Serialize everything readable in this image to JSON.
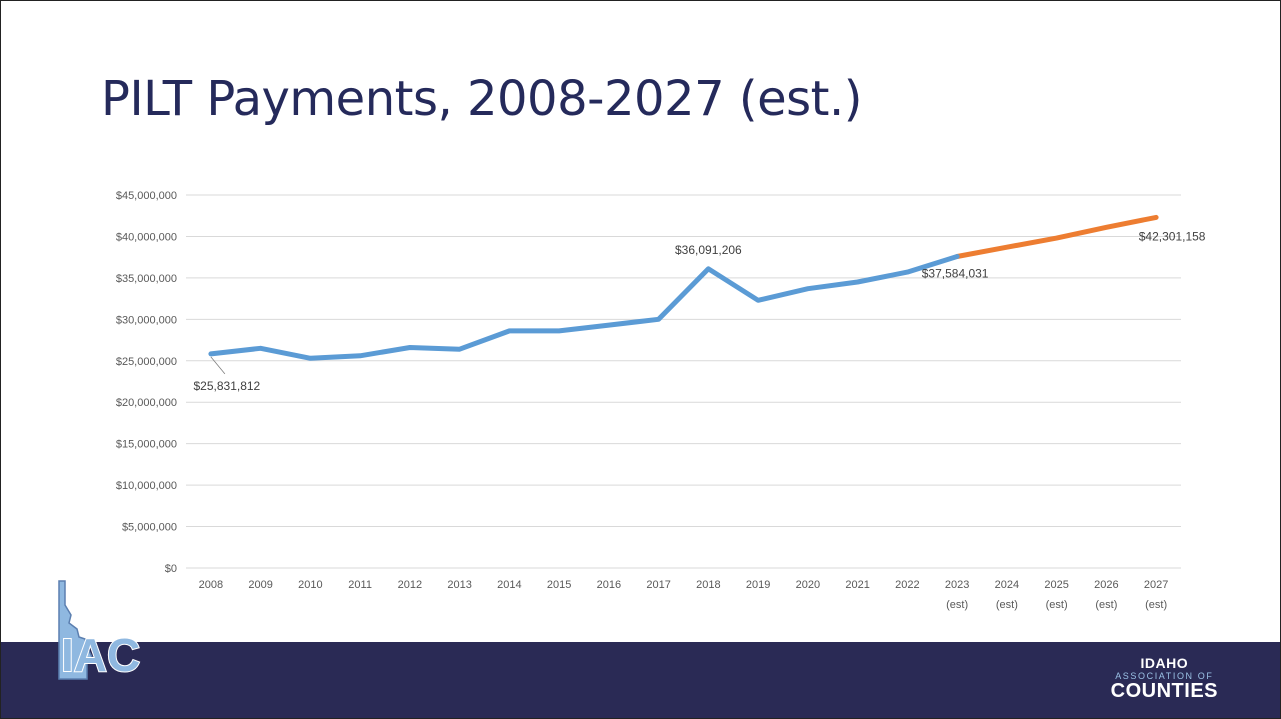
{
  "slide": {
    "title": "PILT Payments, 2008-2027 (est.)"
  },
  "logos": {
    "left_text": "IAC",
    "right_line1": "IDAHO",
    "right_line2": "ASSOCIATION OF",
    "right_line3": "COUNTIES"
  },
  "colors": {
    "actual_series": "#5b9bd5",
    "estimate_series": "#ed7d31",
    "title": "#252a5b",
    "footer": "#2a2a55"
  },
  "chart_data": {
    "type": "line",
    "title": "",
    "xlabel": "",
    "ylabel": "",
    "ylim": [
      0,
      45000000
    ],
    "y_ticks": [
      "$0",
      "$5,000,000",
      "$10,000,000",
      "$15,000,000",
      "$20,000,000",
      "$25,000,000",
      "$30,000,000",
      "$35,000,000",
      "$40,000,000",
      "$45,000,000"
    ],
    "categories": [
      {
        "year": "2008",
        "sub": ""
      },
      {
        "year": "2009",
        "sub": ""
      },
      {
        "year": "2010",
        "sub": ""
      },
      {
        "year": "2011",
        "sub": ""
      },
      {
        "year": "2012",
        "sub": ""
      },
      {
        "year": "2013",
        "sub": ""
      },
      {
        "year": "2014",
        "sub": ""
      },
      {
        "year": "2015",
        "sub": ""
      },
      {
        "year": "2016",
        "sub": ""
      },
      {
        "year": "2017",
        "sub": ""
      },
      {
        "year": "2018",
        "sub": ""
      },
      {
        "year": "2019",
        "sub": ""
      },
      {
        "year": "2020",
        "sub": ""
      },
      {
        "year": "2021",
        "sub": ""
      },
      {
        "year": "2022",
        "sub": ""
      },
      {
        "year": "2023",
        "sub": "(est)"
      },
      {
        "year": "2024",
        "sub": "(est)"
      },
      {
        "year": "2025",
        "sub": "(est)"
      },
      {
        "year": "2026",
        "sub": "(est)"
      },
      {
        "year": "2027",
        "sub": "(est)"
      }
    ],
    "values": [
      25831812,
      26500000,
      25300000,
      25600000,
      26600000,
      26400000,
      28600000,
      28600000,
      29300000,
      30000000,
      36091206,
      32300000,
      33700000,
      34500000,
      35700000,
      37584031,
      38700000,
      39800000,
      41100000,
      42301158
    ],
    "actual_range": [
      0,
      15
    ],
    "estimate_range": [
      15,
      19
    ],
    "data_labels": [
      {
        "index": 0,
        "text": "$25,831,812"
      },
      {
        "index": 10,
        "text": "$36,091,206"
      },
      {
        "index": 15,
        "text": "$37,584,031"
      },
      {
        "index": 19,
        "text": "$42,301,158"
      }
    ],
    "grid": true,
    "legend": "none"
  }
}
